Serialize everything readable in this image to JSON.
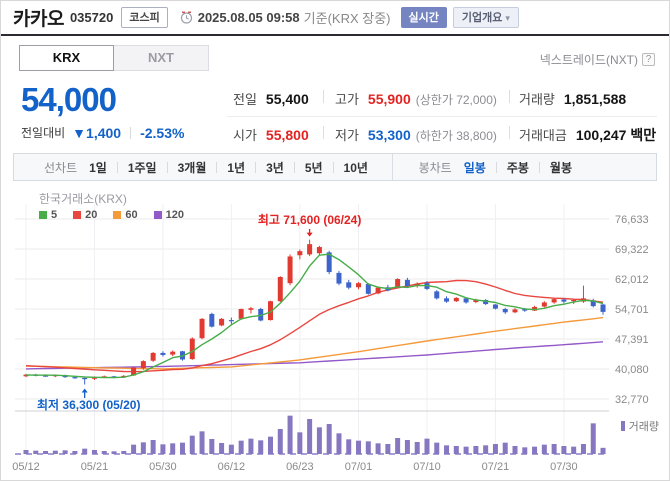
{
  "header": {
    "stock_name": "카카오",
    "stock_code": "035720",
    "market_badge": "코스피",
    "datetime": "2025.08.05 09:58",
    "datetime_suffix": "기준(KRX 장중)",
    "realtime_badge": "실시간",
    "overview_badge": "기업개요",
    "nxt_label": "넥스트레이드(NXT)",
    "help_icon": "?"
  },
  "tabs": [
    {
      "label": "KRX",
      "active": true
    },
    {
      "label": "NXT",
      "active": false
    }
  ],
  "quote": {
    "price": "54,000",
    "change_label": "전일대비",
    "change_arrow": "▼",
    "change_value": "1,400",
    "change_percent": "-2.53%",
    "prev_label": "전일",
    "prev_value": "55,400",
    "high_label": "고가",
    "high_value": "55,900",
    "high_limit": "(상한가 72,000)",
    "open_label": "시가",
    "open_value": "55,800",
    "low_label": "저가",
    "low_value": "53,300",
    "low_limit": "(하한가 38,800)",
    "volume_label": "거래량",
    "volume_value": "1,851,588",
    "amount_label": "거래대금",
    "amount_value": "100,247 백만"
  },
  "toolbar": {
    "line_label": "선차트",
    "line_items": [
      "1일",
      "1주일",
      "3개월",
      "1년",
      "3년",
      "5년",
      "10년"
    ],
    "candle_label": "봉차트",
    "candle_items": [
      "일봉",
      "주봉",
      "월봉"
    ],
    "candle_active": "일봉"
  },
  "colors": {
    "up": "#e13a31",
    "down": "#3c64cb",
    "text_up": "#e32222",
    "text_down": "#1262c9",
    "ma5": "#47ad49",
    "ma20": "#e8473f",
    "ma60": "#f59a3b",
    "ma120": "#9459c9",
    "volume": "#8677c0",
    "grid": "#ebebee",
    "vgrid": "#f0f0f3",
    "axis_text": "#8a8a8a",
    "pane_divider": "#d0d0d4",
    "vol_axis": "#a89fd8"
  },
  "chart_data": {
    "type": "candlestick",
    "exchange_label": "한국거래소(KRX)",
    "ma_legend": [
      {
        "period": "5",
        "color": "#47ad49"
      },
      {
        "period": "20",
        "color": "#e8473f"
      },
      {
        "period": "60",
        "color": "#f59a3b"
      },
      {
        "period": "120",
        "color": "#9459c9"
      }
    ],
    "volume_legend": "거래량",
    "y_ticks": [
      76633,
      69322,
      62012,
      54701,
      47391,
      40080,
      32770
    ],
    "x_ticks": [
      {
        "i": 0,
        "label": "05/12"
      },
      {
        "i": 7,
        "label": "05/21"
      },
      {
        "i": 14,
        "label": "05/30"
      },
      {
        "i": 21,
        "label": "06/12"
      },
      {
        "i": 28,
        "label": "06/23"
      },
      {
        "i": 34,
        "label": "07/01"
      },
      {
        "i": 41,
        "label": "07/10"
      },
      {
        "i": 48,
        "label": "07/21"
      },
      {
        "i": 55,
        "label": "07/30"
      }
    ],
    "annotations": {
      "high": {
        "text": "최고 71,600 (06/24)",
        "index": 29,
        "price": 71600
      },
      "low": {
        "text": "최저 36,300 (05/20)",
        "index": 6,
        "price": 36300
      }
    },
    "volume_scale_max": 12,
    "ma5_pad": 38600,
    "ma20_pad": 41000,
    "ma60_anchors": [
      [
        0,
        40800
      ],
      [
        7,
        40400
      ],
      [
        14,
        40100
      ],
      [
        21,
        40600
      ],
      [
        28,
        42300
      ],
      [
        34,
        44300
      ],
      [
        41,
        46900
      ],
      [
        48,
        49300
      ],
      [
        55,
        51500
      ],
      [
        59,
        52600
      ]
    ],
    "ma120_anchors": [
      [
        0,
        40100
      ],
      [
        14,
        40700
      ],
      [
        28,
        41600
      ],
      [
        41,
        43500
      ],
      [
        50,
        45200
      ],
      [
        55,
        46000
      ],
      [
        59,
        46700
      ]
    ],
    "candles": [
      [
        "05/12",
        38300,
        38900,
        38100,
        38700,
        1.2
      ],
      [
        "05/13",
        38700,
        38900,
        38300,
        38500,
        1.0
      ],
      [
        "05/14",
        38500,
        38800,
        38200,
        38400,
        0.9
      ],
      [
        "05/15",
        38400,
        38700,
        38100,
        38600,
        1.0
      ],
      [
        "05/16",
        38600,
        38700,
        37900,
        38100,
        1.1
      ],
      [
        "05/19",
        38100,
        38400,
        37700,
        37900,
        0.9
      ],
      [
        "05/20",
        37900,
        38000,
        36300,
        37600,
        1.6
      ],
      [
        "05/21",
        37700,
        38300,
        37400,
        38100,
        1.2
      ],
      [
        "05/22",
        38100,
        38500,
        37900,
        38300,
        0.9
      ],
      [
        "05/23",
        38300,
        38400,
        37800,
        38000,
        0.8
      ],
      [
        "05/26",
        38000,
        38600,
        37900,
        38400,
        0.9
      ],
      [
        "05/27",
        38500,
        40600,
        38400,
        40400,
        2.8
      ],
      [
        "05/28",
        40300,
        42200,
        39900,
        42000,
        3.5
      ],
      [
        "05/29",
        42100,
        44200,
        41800,
        44000,
        4.2
      ],
      [
        "05/30",
        44000,
        44400,
        43100,
        43500,
        2.9
      ],
      [
        "06/02",
        43600,
        44600,
        43200,
        44300,
        3.2
      ],
      [
        "06/04",
        44400,
        44500,
        42100,
        42400,
        3.4
      ],
      [
        "06/05",
        42500,
        47800,
        42300,
        47500,
        5.5
      ],
      [
        "06/09",
        47600,
        52500,
        47300,
        52300,
        6.8
      ],
      [
        "06/10",
        53500,
        53800,
        50200,
        50400,
        4.5
      ],
      [
        "06/11",
        50700,
        52500,
        50500,
        52300,
        3.3
      ],
      [
        "06/12",
        52000,
        52600,
        51000,
        51800,
        2.8
      ],
      [
        "06/13",
        52300,
        54800,
        52100,
        54700,
        4.0
      ],
      [
        "06/16",
        54500,
        55200,
        53600,
        54900,
        4.6
      ],
      [
        "06/17",
        54700,
        55000,
        51700,
        51900,
        4.1
      ],
      [
        "06/18",
        52000,
        56700,
        51900,
        56600,
        5.2
      ],
      [
        "06/19",
        56600,
        62700,
        56400,
        62500,
        7.5
      ],
      [
        "06/20",
        61000,
        68000,
        60500,
        67500,
        11.5
      ],
      [
        "06/23",
        67800,
        69200,
        66800,
        68800,
        6.5
      ],
      [
        "06/24",
        68000,
        71600,
        67600,
        70500,
        10.5
      ],
      [
        "06/25",
        68300,
        70100,
        67900,
        69800,
        8.0
      ],
      [
        "06/26",
        68500,
        68900,
        63200,
        63700,
        9.0
      ],
      [
        "06/27",
        63500,
        64000,
        60500,
        60900,
        6.2
      ],
      [
        "06/30",
        61200,
        61800,
        59500,
        59900,
        4.4
      ],
      [
        "07/01",
        60000,
        61300,
        59500,
        61000,
        4.0
      ],
      [
        "07/02",
        60800,
        61000,
        58200,
        58400,
        3.8
      ],
      [
        "07/03",
        58500,
        60100,
        58300,
        59900,
        3.2
      ],
      [
        "07/04",
        60000,
        60600,
        59000,
        59200,
        3.0
      ],
      [
        "07/07",
        60000,
        62200,
        59800,
        62000,
        4.8
      ],
      [
        "07/08",
        61800,
        62300,
        60000,
        60300,
        4.2
      ],
      [
        "07/09",
        60400,
        61200,
        59900,
        60900,
        3.6
      ],
      [
        "07/10",
        61000,
        61500,
        59300,
        59600,
        4.6
      ],
      [
        "07/11",
        59000,
        59300,
        57000,
        57300,
        3.4
      ],
      [
        "07/14",
        57300,
        57800,
        56200,
        56500,
        2.6
      ],
      [
        "07/15",
        56600,
        57600,
        56400,
        57400,
        2.4
      ],
      [
        "07/16",
        57300,
        57500,
        56000,
        56300,
        2.2
      ],
      [
        "07/17",
        56400,
        57200,
        56100,
        57000,
        2.4
      ],
      [
        "07/18",
        56900,
        57100,
        55700,
        55900,
        2.6
      ],
      [
        "07/21",
        55800,
        55900,
        54600,
        54800,
        3.0
      ],
      [
        "07/22",
        54700,
        55000,
        53500,
        53900,
        3.4
      ],
      [
        "07/23",
        53900,
        54900,
        53700,
        54600,
        2.4
      ],
      [
        "07/24",
        54700,
        55000,
        54000,
        54300,
        2.0
      ],
      [
        "07/25",
        54300,
        55500,
        54200,
        55200,
        2.2
      ],
      [
        "07/28",
        55300,
        56600,
        55100,
        56300,
        2.8
      ],
      [
        "07/29",
        56300,
        57400,
        56000,
        57100,
        3.0
      ],
      [
        "07/30",
        57000,
        57300,
        56100,
        56500,
        2.4
      ],
      [
        "07/31",
        56600,
        57100,
        55900,
        56900,
        2.2
      ],
      [
        "08/01",
        56500,
        60400,
        56200,
        57300,
        3.0
      ],
      [
        "08/04",
        56800,
        57200,
        55100,
        55400,
        9.2
      ],
      [
        "08/05",
        55800,
        55900,
        53300,
        54000,
        1.85
      ]
    ]
  }
}
